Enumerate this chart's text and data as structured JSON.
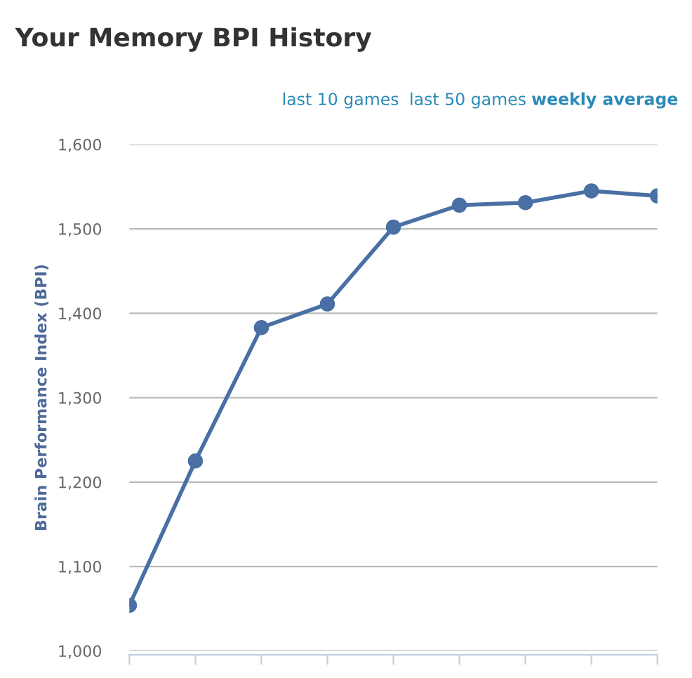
{
  "chart_data": {
    "type": "line",
    "title": "Your Memory BPI History",
    "annotations": [
      "last 10 games",
      "last 50 games",
      "weekly average"
    ],
    "ylabel": "Brain Performance Index (BPI)",
    "categories": [
      null,
      null,
      null,
      null,
      null,
      null,
      null,
      null,
      null
    ],
    "series": [
      {
        "color": "#4a6fa5",
        "values": [
          1054,
          1225,
          1383,
          1411,
          1502,
          1528,
          1531,
          1545,
          1539
        ]
      }
    ],
    "ylim": [
      1000,
      1600
    ],
    "yticks": [
      {
        "value": 1000,
        "label": "1,000"
      },
      {
        "value": 1100,
        "label": "1,100"
      },
      {
        "value": 1200,
        "label": "1,200"
      },
      {
        "value": 1300,
        "label": "1,300"
      },
      {
        "value": 1400,
        "label": "1,400"
      },
      {
        "value": 1500,
        "label": "1,500"
      },
      {
        "value": 1600,
        "label": "1,600"
      }
    ],
    "grid": "y",
    "marker": "circle",
    "line_style": "solid"
  }
}
